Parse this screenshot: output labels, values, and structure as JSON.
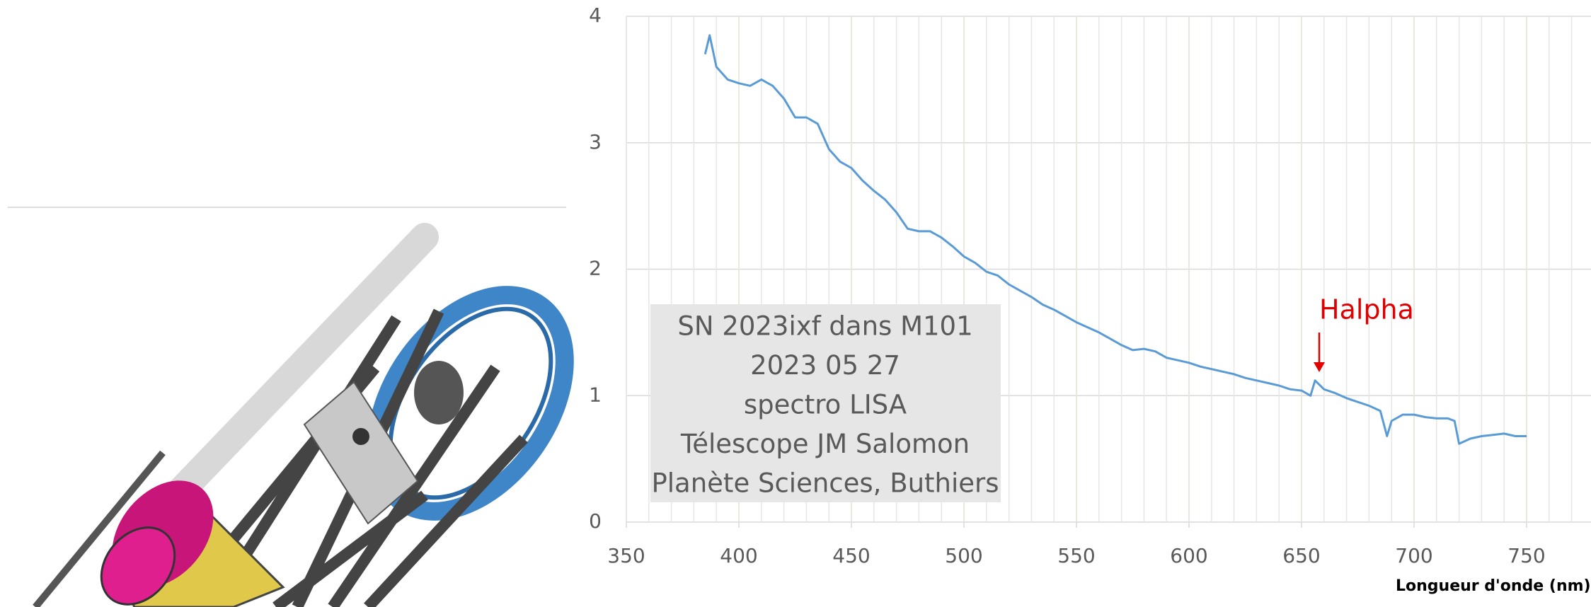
{
  "chart_data": {
    "type": "line",
    "x_label": "Longueur d'onde (nm)",
    "annotation_box": [
      "SN 2023ixf dans M101",
      "2023 05 27",
      "spectro LISA",
      "Télescope JM Salomon",
      "Planète Sciences, Buthiers"
    ],
    "line_annotation": "Halpha",
    "x": [
      385,
      387,
      390,
      395,
      400,
      405,
      410,
      415,
      420,
      425,
      430,
      435,
      440,
      445,
      450,
      455,
      460,
      465,
      470,
      475,
      480,
      485,
      490,
      495,
      500,
      505,
      510,
      515,
      520,
      525,
      530,
      535,
      540,
      545,
      550,
      555,
      560,
      565,
      570,
      575,
      580,
      585,
      590,
      595,
      600,
      605,
      610,
      615,
      620,
      625,
      630,
      635,
      640,
      645,
      650,
      654,
      656,
      660,
      665,
      670,
      675,
      680,
      685,
      688,
      690,
      695,
      700,
      705,
      710,
      715,
      718,
      720,
      725,
      730,
      735,
      740,
      745,
      750
    ],
    "series": [
      {
        "color": "#5b9bd5",
        "values": [
          3.7,
          3.85,
          3.6,
          3.5,
          3.47,
          3.45,
          3.5,
          3.45,
          3.35,
          3.2,
          3.2,
          3.15,
          2.95,
          2.85,
          2.8,
          2.7,
          2.62,
          2.55,
          2.45,
          2.32,
          2.3,
          2.3,
          2.25,
          2.18,
          2.1,
          2.05,
          1.98,
          1.95,
          1.88,
          1.83,
          1.78,
          1.72,
          1.68,
          1.63,
          1.58,
          1.54,
          1.5,
          1.45,
          1.4,
          1.36,
          1.37,
          1.35,
          1.3,
          1.28,
          1.26,
          1.23,
          1.21,
          1.19,
          1.17,
          1.14,
          1.12,
          1.1,
          1.08,
          1.05,
          1.04,
          1.0,
          1.12,
          1.05,
          1.02,
          0.98,
          0.95,
          0.92,
          0.88,
          0.68,
          0.8,
          0.85,
          0.85,
          0.83,
          0.82,
          0.82,
          0.8,
          0.62,
          0.66,
          0.68,
          0.69,
          0.7,
          0.68,
          0.68
        ]
      }
    ],
    "xlim": [
      350,
      800
    ],
    "xticks": [
      350,
      400,
      450,
      500,
      550,
      600,
      650,
      700,
      750
    ],
    "ylim": [
      0,
      4
    ],
    "yticks": [
      0,
      1,
      2,
      3,
      4
    ],
    "grid": true
  }
}
